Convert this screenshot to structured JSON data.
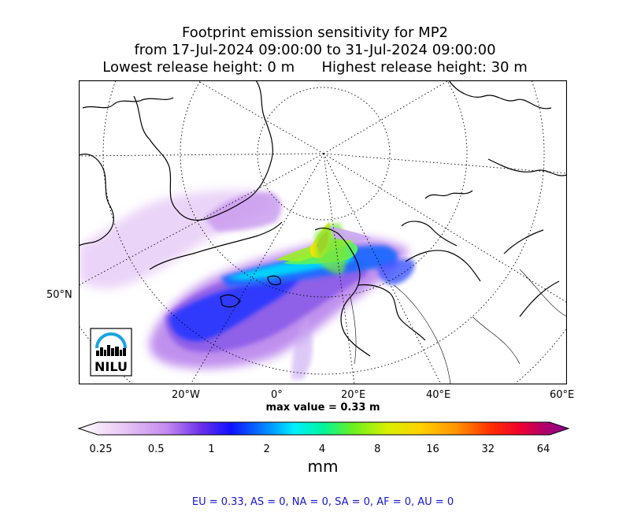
{
  "title": {
    "line1": "Footprint emission sensitivity for MP2",
    "line2": "from 17-Jul-2024 09:00:00 to 31-Jul-2024 09:00:00",
    "line3_left": "Lowest release height: 0 m",
    "line3_right": "Highest release height: 30 m"
  },
  "map": {
    "projection": "north polar stereographic",
    "graticule": "dotted",
    "lat_tick_label": "50°N",
    "lon_tick_labels": [
      "20°W",
      "0°",
      "20°E",
      "40°E",
      "60°E"
    ],
    "logo_text": "NILU",
    "max_value_label": "max value = 0.33 m"
  },
  "colorbar": {
    "ticks": [
      "0.25",
      "0.5",
      "1",
      "2",
      "4",
      "8",
      "16",
      "32",
      "64"
    ],
    "colors": [
      "#ffffff",
      "#d9a9f0",
      "#8a3ae0",
      "#2020ff",
      "#00e5ff",
      "#7cf02a",
      "#f2f000",
      "#ff9500",
      "#ff1010",
      "#c0006a",
      "#8a0090"
    ],
    "unit": "mm",
    "extend": "both"
  },
  "totals": "EU = 0.33,  AS = 0,  NA = 0,  SA = 0,  AF = 0,  AU = 0"
}
